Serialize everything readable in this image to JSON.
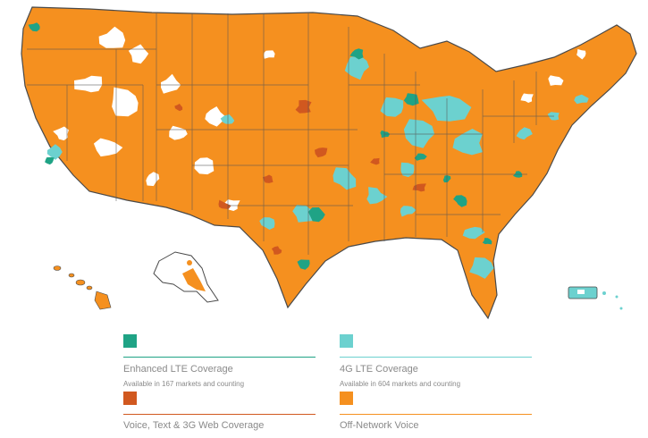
{
  "colors": {
    "enhanced_lte": "#1fa385",
    "lte_4g": "#6cd1cf",
    "voice_3g": "#d1581f",
    "off_network": "#f5901f",
    "state_border": "#4a4a4a",
    "legend_text": "#8a8a8a"
  },
  "legend": {
    "items": [
      {
        "key": "enhanced_lte",
        "title": "Enhanced LTE Coverage",
        "subtitle": "Available in 167 markets and counting"
      },
      {
        "key": "lte_4g",
        "title": "4G LTE Coverage",
        "subtitle": "Available in 604 markets and counting"
      },
      {
        "key": "voice_3g",
        "title": "Voice, Text & 3G Web Coverage",
        "subtitle": ""
      },
      {
        "key": "off_network",
        "title": "Off-Network Voice",
        "subtitle": ""
      }
    ]
  },
  "map": {
    "regions": [
      "contiguous-us",
      "alaska",
      "hawaii",
      "puerto-rico"
    ]
  }
}
